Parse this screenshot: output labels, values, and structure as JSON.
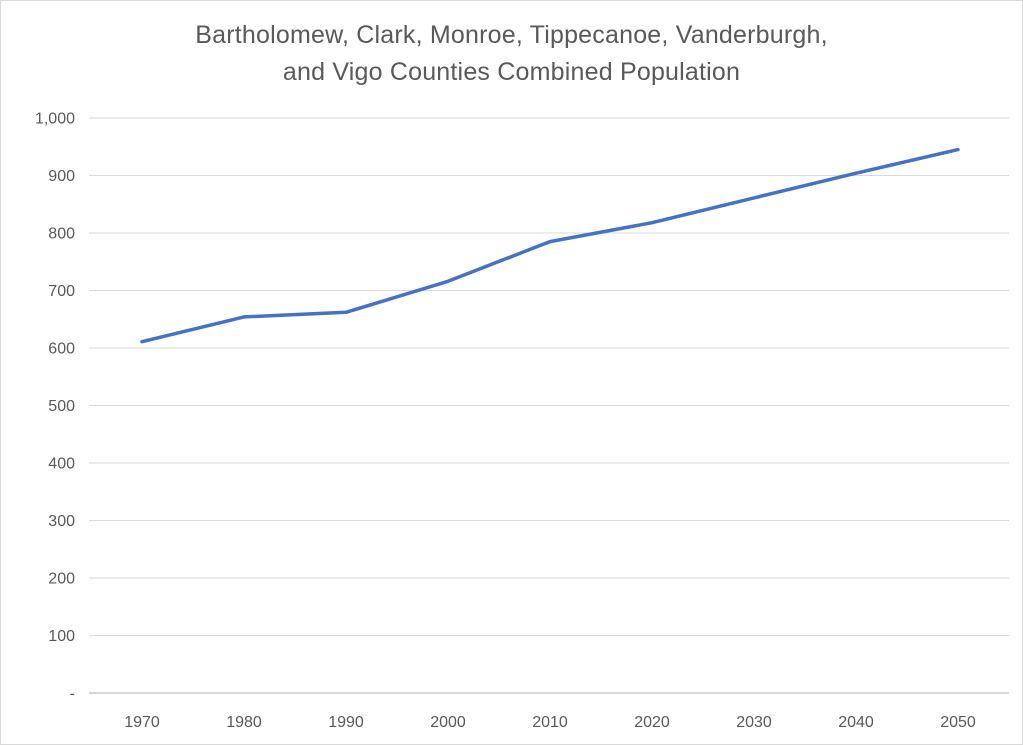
{
  "chart_data": {
    "type": "line",
    "title": "Bartholomew, Clark, Monroe, Tippecanoe, Vanderburgh, and Vigo Counties Combined Population",
    "title_lines": [
      "Bartholomew, Clark, Monroe, Tippecanoe, Vanderburgh,",
      "and Vigo Counties Combined Population"
    ],
    "categories": [
      "1970",
      "1980",
      "1990",
      "2000",
      "2010",
      "2020",
      "2030",
      "2040",
      "2050"
    ],
    "values": [
      611,
      654,
      662,
      716,
      785,
      818,
      861,
      904,
      945
    ],
    "xlabel": "",
    "ylabel": "",
    "ylim": [
      0,
      1000
    ],
    "ytick_step": 100,
    "ytick_labels": [
      "-",
      "100",
      "200",
      "300",
      "400",
      "500",
      "600",
      "700",
      "800",
      "900",
      "1,000"
    ],
    "grid": true,
    "legend": "none",
    "colors": {
      "line": "#4472C4",
      "gridline": "#D9D9D9",
      "axis_line": "#BFBFBF",
      "tick_label": "#595959",
      "title": "#595959",
      "background": "#FFFFFF",
      "border": "#D9D9D9"
    }
  }
}
